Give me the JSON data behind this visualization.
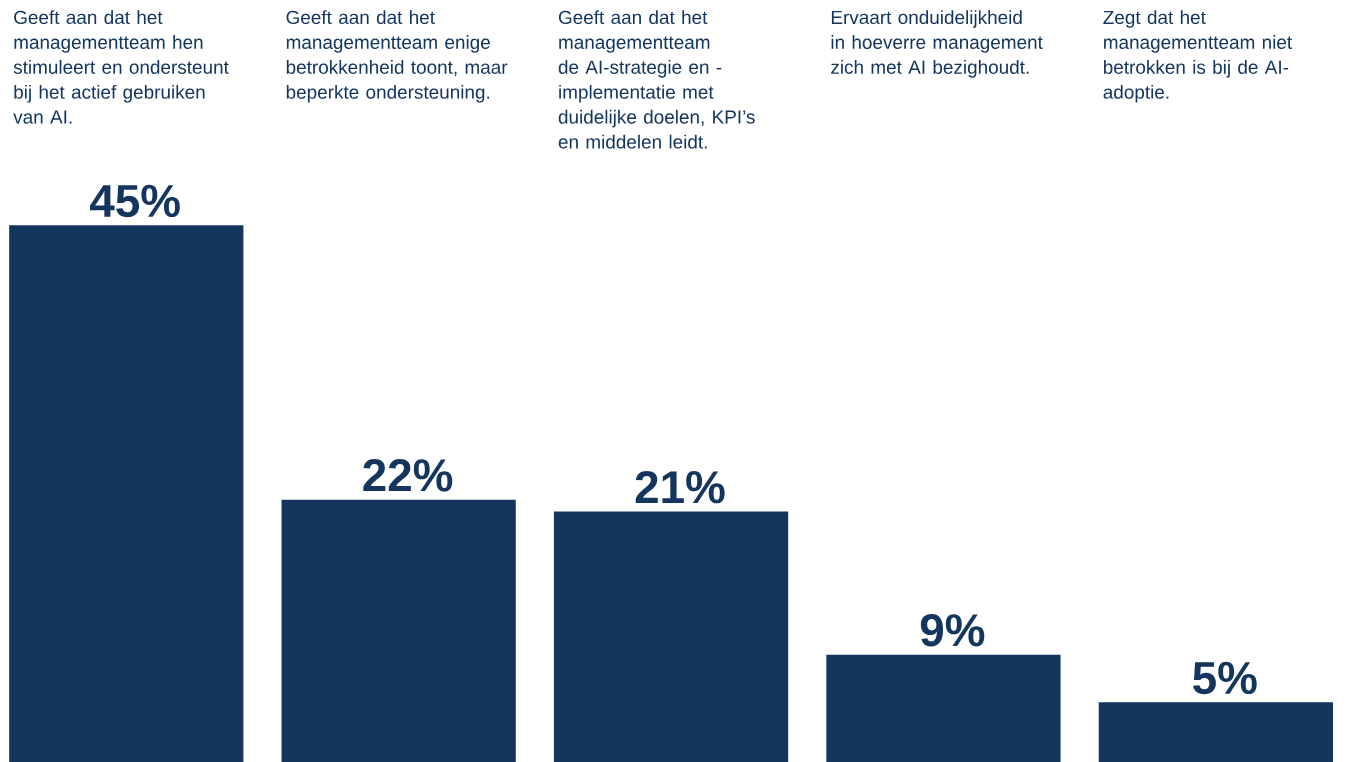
{
  "chart_data": {
    "type": "bar",
    "categories": [
      "Geeft aan dat het managementteam hen stimuleert en ondersteunt bij het actief gebruiken van AI.",
      "Geeft aan dat het managementteam enige betrokkenheid toont, maar beperkte ondersteuning.",
      "Geeft aan dat het managementteam de AI-strategie en -implementatie met duidelijke doelen, KPI’s en middelen leidt.",
      "Ervaart onduidelijkheid in hoeverre management zich met AI bezighoudt.",
      "Zegt dat het managementteam niet betrokken is bij de AI-adoptie."
    ],
    "values": [
      45,
      22,
      21,
      9,
      5
    ],
    "value_labels": [
      "45%",
      "22%",
      "21%",
      "9%",
      "5%"
    ],
    "color": "#14365e"
  }
}
